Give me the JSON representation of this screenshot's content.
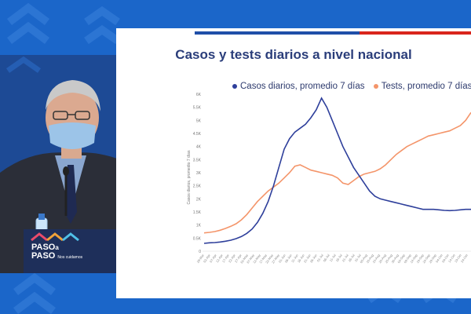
{
  "slide": {
    "title": "Casos y tests diarios a nivel nacional"
  },
  "colors": {
    "casos": "#2e3f9b",
    "tests": "#f4956a",
    "background": "#1b66c9",
    "stripe_blue": "#1f4fa8",
    "stripe_red": "#d9251c"
  },
  "podium": {
    "brand_line1": "PASO",
    "brand_letter": "a",
    "brand_line2": "PASO",
    "brand_sub": "Nos cuidamos"
  },
  "chart_data": {
    "type": "line",
    "title": "Casos y tests diarios a nivel nacional",
    "ylabel": "Casos diarios, promedio 7 días",
    "ylim": [
      0,
      6000
    ],
    "yticks": [
      0,
      500,
      1000,
      1500,
      2000,
      2500,
      3000,
      3500,
      4000,
      4500,
      5000,
      5500,
      6000
    ],
    "ytick_labels": [
      "0",
      "0.5K",
      "1K",
      "1.5K",
      "2K",
      "2.5K",
      "3K",
      "3.5K",
      "4K",
      "4.5K",
      "5K",
      "5.5K",
      "6K"
    ],
    "legend_position": "top",
    "grid": false,
    "x": [
      0,
      2,
      4,
      6,
      8,
      10,
      12,
      14,
      16,
      18,
      20,
      22,
      24,
      26,
      28,
      30,
      32,
      34,
      36,
      38,
      40,
      42,
      44,
      46,
      48,
      50,
      52,
      54,
      56,
      58,
      60,
      62,
      64,
      66,
      68,
      70,
      72,
      74,
      76,
      78,
      80,
      82,
      84,
      86,
      88,
      90,
      92,
      94,
      96,
      98,
      100
    ],
    "series": [
      {
        "name": "Casos diarios, promedio 7 días",
        "values": [
          300,
          320,
          330,
          350,
          380,
          420,
          480,
          560,
          680,
          850,
          1100,
          1450,
          1900,
          2500,
          3200,
          3900,
          4300,
          4550,
          4700,
          4850,
          5100,
          5400,
          5850,
          5500,
          5000,
          4500,
          4000,
          3600,
          3200,
          2900,
          2600,
          2300,
          2100,
          2000,
          1950,
          1900,
          1850,
          1800,
          1750,
          1700,
          1650,
          1600,
          1600,
          1600,
          1580,
          1560,
          1550,
          1560,
          1580,
          1600,
          1600
        ]
      },
      {
        "name": "Tests, promedio 7 días",
        "values": [
          700,
          720,
          750,
          800,
          870,
          950,
          1050,
          1200,
          1400,
          1650,
          1900,
          2100,
          2300,
          2450,
          2600,
          2800,
          3000,
          3250,
          3300,
          3200,
          3100,
          3050,
          3000,
          2950,
          2900,
          2800,
          2600,
          2550,
          2700,
          2850,
          2950,
          3000,
          3050,
          3150,
          3300,
          3500,
          3700,
          3850,
          4000,
          4100,
          4200,
          4300,
          4400,
          4450,
          4500,
          4550,
          4600,
          4700,
          4800,
          5000,
          5300
        ]
      }
    ],
    "x_tick_labels": [
      "28-Mar",
      "02-Apr",
      "07-Apr",
      "12-Apr",
      "17-Apr",
      "22-Apr",
      "27-Apr",
      "02-May",
      "07-May",
      "12-May",
      "17-May",
      "22-May",
      "27-May",
      "01-Jun",
      "06-Jun",
      "11-Jun",
      "16-Jun",
      "21-Jun",
      "26-Jun",
      "01-Jul",
      "06-Jul",
      "11-Jul",
      "16-Jul",
      "21-Jul",
      "26-Jul",
      "31-Jul",
      "05-Aug",
      "10-Aug",
      "15-Aug",
      "20-Aug",
      "25-Aug",
      "30-Aug",
      "04-Sep",
      "09-Sep",
      "14-Sep",
      "19-Sep",
      "24-Sep",
      "29-Sep",
      "04-Oct",
      "09-Oct",
      "14-Oct",
      "19-Oct",
      "24-Oct"
    ]
  }
}
